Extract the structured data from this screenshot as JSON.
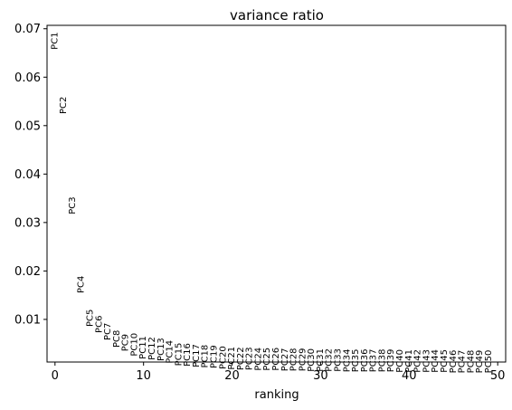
{
  "chart_data": {
    "type": "scatter",
    "title": "variance ratio",
    "xlabel": "ranking",
    "ylabel": "",
    "xlim": [
      -0.9,
      50.9
    ],
    "ylim": [
      0.0012,
      0.0707
    ],
    "xticks": [
      0,
      10,
      20,
      30,
      40,
      50
    ],
    "yticks": [
      0.01,
      0.02,
      0.03,
      0.04,
      0.05,
      0.06,
      0.07
    ],
    "ytick_labels": [
      "0.01",
      "0.02",
      "0.03",
      "0.04",
      "0.05",
      "0.06",
      "0.07"
    ],
    "grid": false,
    "marker": "text-label-only",
    "points": [
      {
        "label": "PC1",
        "x": 0,
        "y": 0.0675
      },
      {
        "label": "PC2",
        "x": 1,
        "y": 0.0542
      },
      {
        "label": "PC3",
        "x": 2,
        "y": 0.0335
      },
      {
        "label": "PC4",
        "x": 3,
        "y": 0.0172
      },
      {
        "label": "PC5",
        "x": 4,
        "y": 0.0103
      },
      {
        "label": "PC6",
        "x": 5,
        "y": 0.009
      },
      {
        "label": "PC7",
        "x": 6,
        "y": 0.0075
      },
      {
        "label": "PC8",
        "x": 7,
        "y": 0.006
      },
      {
        "label": "PC9",
        "x": 8,
        "y": 0.0052
      },
      {
        "label": "PC10",
        "x": 9,
        "y": 0.0048
      },
      {
        "label": "PC11",
        "x": 10,
        "y": 0.0042
      },
      {
        "label": "PC12",
        "x": 11,
        "y": 0.004
      },
      {
        "label": "PC13",
        "x": 12,
        "y": 0.0038
      },
      {
        "label": "PC14",
        "x": 13,
        "y": 0.0033
      },
      {
        "label": "PC15",
        "x": 14,
        "y": 0.0028
      },
      {
        "label": "PC16",
        "x": 15,
        "y": 0.0027
      },
      {
        "label": "PC17",
        "x": 16,
        "y": 0.0025
      },
      {
        "label": "PC18",
        "x": 17,
        "y": 0.0024
      },
      {
        "label": "PC19",
        "x": 18,
        "y": 0.0023
      },
      {
        "label": "PC20",
        "x": 19,
        "y": 0.0021
      },
      {
        "label": "PC21",
        "x": 20,
        "y": 0.002
      },
      {
        "label": "PC22",
        "x": 21,
        "y": 0.0019
      },
      {
        "label": "PC23",
        "x": 22,
        "y": 0.0019
      },
      {
        "label": "PC24",
        "x": 23,
        "y": 0.0018
      },
      {
        "label": "PC25",
        "x": 24,
        "y": 0.0018
      },
      {
        "label": "PC26",
        "x": 25,
        "y": 0.0018
      },
      {
        "label": "PC27",
        "x": 26,
        "y": 0.0017
      },
      {
        "label": "PC28",
        "x": 27,
        "y": 0.0017
      },
      {
        "label": "PC29",
        "x": 28,
        "y": 0.0017
      },
      {
        "label": "PC30",
        "x": 29,
        "y": 0.0016
      },
      {
        "label": "PC31",
        "x": 30,
        "y": 0.0016
      },
      {
        "label": "PC32",
        "x": 31,
        "y": 0.0016
      },
      {
        "label": "PC33",
        "x": 32,
        "y": 0.0016
      },
      {
        "label": "PC34",
        "x": 33,
        "y": 0.0015
      },
      {
        "label": "PC35",
        "x": 34,
        "y": 0.0015
      },
      {
        "label": "PC36",
        "x": 35,
        "y": 0.0015
      },
      {
        "label": "PC37",
        "x": 36,
        "y": 0.0015
      },
      {
        "label": "PC38",
        "x": 37,
        "y": 0.0015
      },
      {
        "label": "PC39",
        "x": 38,
        "y": 0.0015
      },
      {
        "label": "PC40",
        "x": 39,
        "y": 0.0014
      },
      {
        "label": "PC41",
        "x": 40,
        "y": 0.0014
      },
      {
        "label": "PC42",
        "x": 41,
        "y": 0.0014
      },
      {
        "label": "PC43",
        "x": 42,
        "y": 0.0014
      },
      {
        "label": "PC44",
        "x": 43,
        "y": 0.0014
      },
      {
        "label": "PC45",
        "x": 44,
        "y": 0.0014
      },
      {
        "label": "PC46",
        "x": 45,
        "y": 0.0013
      },
      {
        "label": "PC47",
        "x": 46,
        "y": 0.0013
      },
      {
        "label": "PC48",
        "x": 47,
        "y": 0.0013
      },
      {
        "label": "PC49",
        "x": 48,
        "y": 0.0013
      },
      {
        "label": "PC50",
        "x": 49,
        "y": 0.0013
      }
    ]
  }
}
